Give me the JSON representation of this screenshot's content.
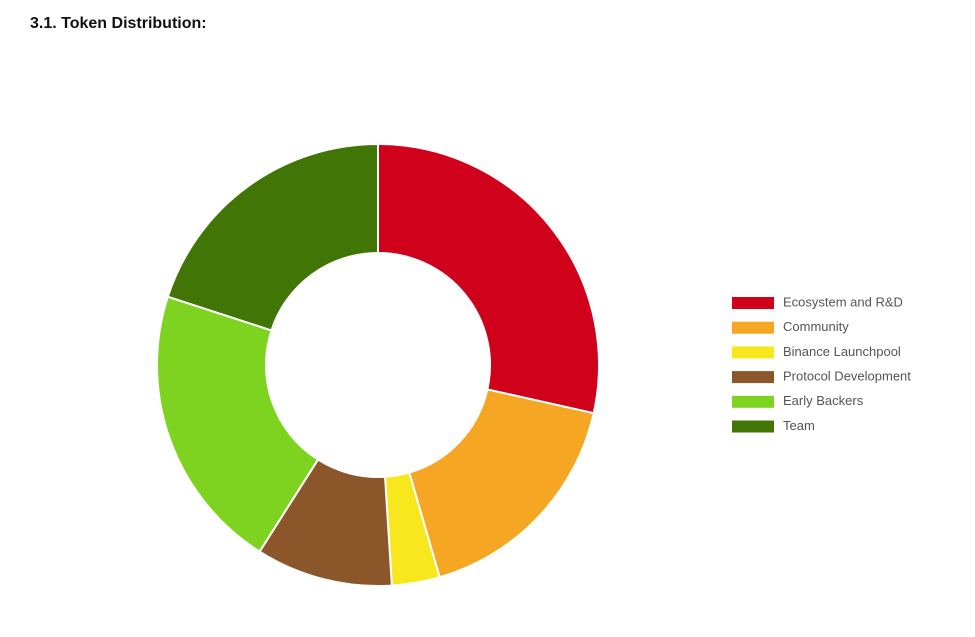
{
  "chart_data": {
    "type": "donut",
    "title": "3.1. Token Distribution:",
    "categories": [
      "Ecosystem and R&D",
      "Community",
      "Binance Launchpool",
      "Protocol Development",
      "Early Backers",
      "Team"
    ],
    "values": [
      28.5,
      17,
      3.5,
      10,
      21,
      20
    ],
    "colors": [
      "#d0021b",
      "#f5a623",
      "#f8e71c",
      "#8b572a",
      "#7ed321",
      "#417505"
    ],
    "legend": "right"
  }
}
